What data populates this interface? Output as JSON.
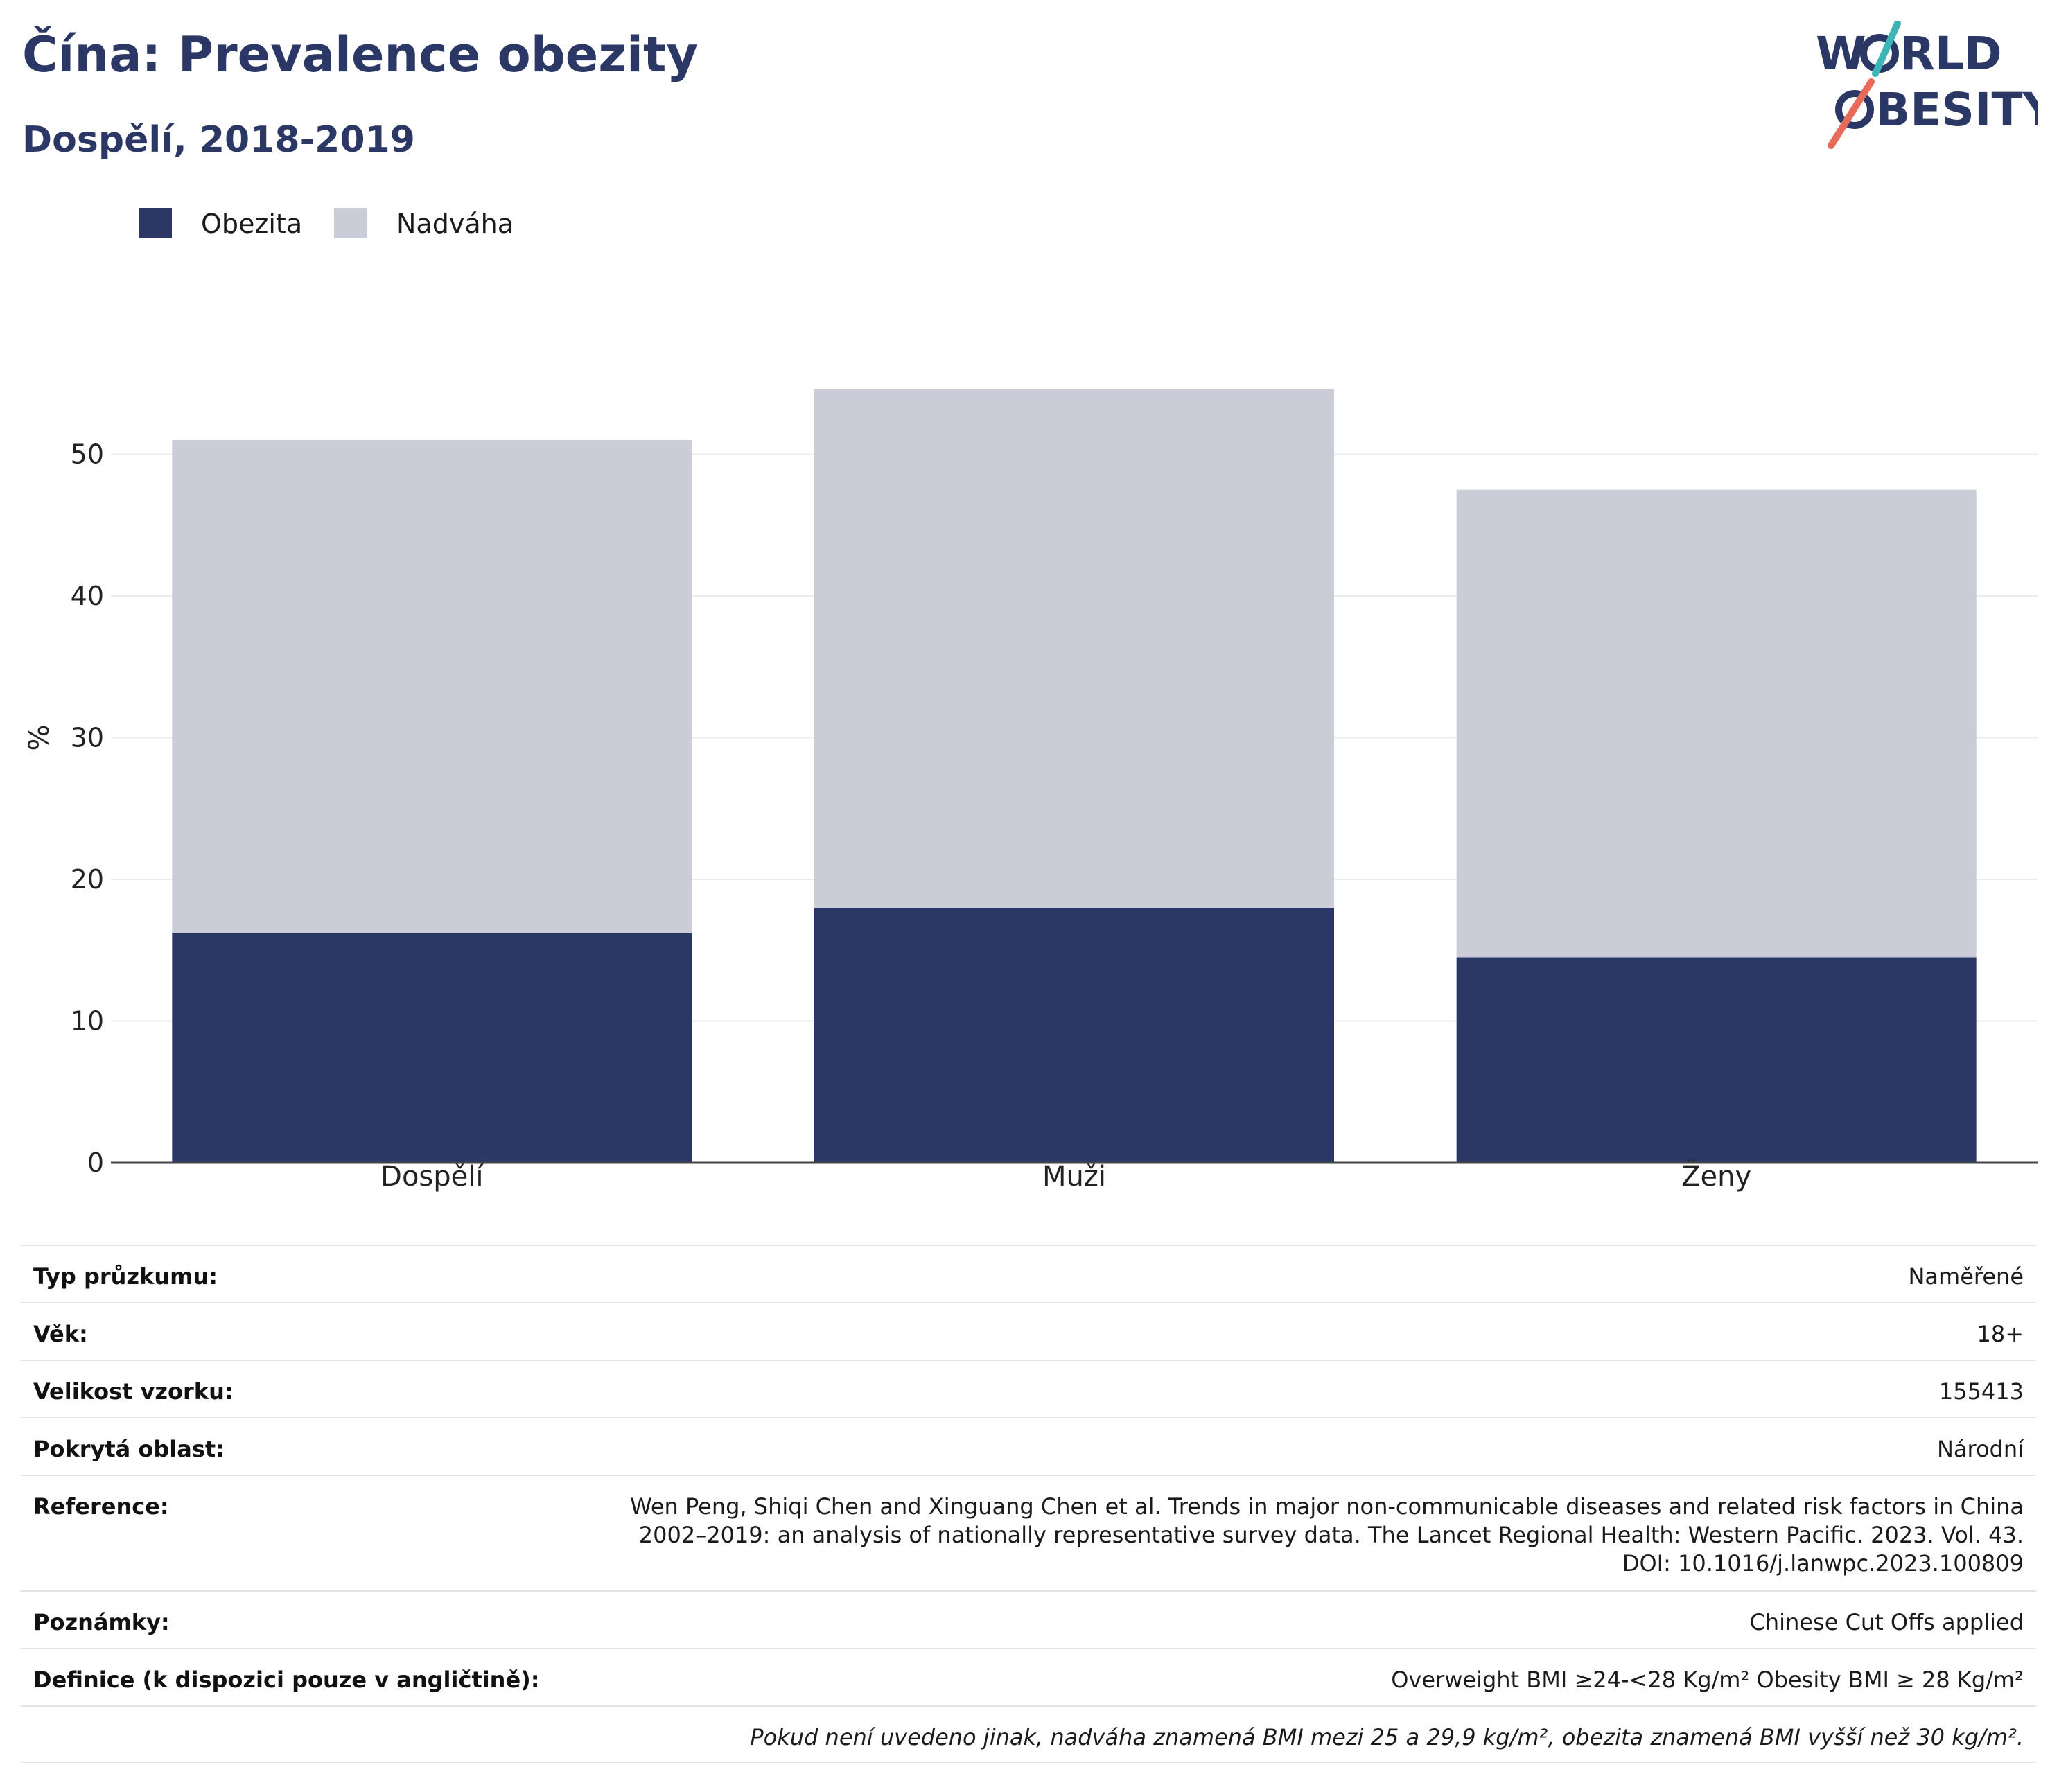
{
  "header": {
    "title": "Čína: Prevalence obezity",
    "subtitle": "Dospělí, 2018-2019"
  },
  "logo": {
    "line1_a": "W",
    "line1_b": "RLD",
    "line2_b": "BESITY",
    "accent_teal": "#3bb5b5",
    "accent_coral": "#e86a58"
  },
  "colors": {
    "obesity": "#2b3764",
    "overweight": "#cacdd8",
    "title": "#2b3764"
  },
  "chart_data": {
    "type": "bar",
    "stacked": true,
    "categories": [
      "Dospělí",
      "Muži",
      "Ženy"
    ],
    "series": [
      {
        "name": "Obezita",
        "values": [
          16.2,
          18.0,
          14.5
        ],
        "color": "#2b3764"
      },
      {
        "name": "Nadváha",
        "values": [
          34.8,
          36.6,
          33.0
        ],
        "color": "#cacdd8"
      }
    ],
    "ylabel": "%",
    "ylim": [
      0,
      60
    ],
    "yticks": [
      0,
      10,
      20,
      30,
      40,
      50
    ],
    "grid": true,
    "legend_position": "top-left"
  },
  "details": {
    "rows": [
      {
        "label": "Typ průzkumu:",
        "value": "Naměřené"
      },
      {
        "label": "Věk:",
        "value": "18+"
      },
      {
        "label": "Velikost vzorku:",
        "value": "155413"
      },
      {
        "label": "Pokrytá oblast:",
        "value": "Národní"
      },
      {
        "label": "Reference:",
        "value": "Wen Peng, Shiqi Chen and Xinguang Chen et al. Trends in major non-communicable diseases and related risk factors in China 2002–2019: an analysis of nationally representative survey data. The Lancet Regional Health: Western Pacific. 2023. Vol. 43. DOI: 10.1016/j.lanwpc.2023.100809"
      },
      {
        "label": "Poznámky:",
        "value": "Chinese Cut Offs applied"
      },
      {
        "label": "Definice (k dispozici pouze v angličtině):",
        "value": "Overweight BMI ≥24-<28 Kg/m² Obesity BMI ≥ 28 Kg/m²"
      }
    ],
    "footnote": "Pokud není uvedeno jinak, nadváha znamená BMI mezi 25 a 29,9 kg/m², obezita znamená BMI vyšší než 30 kg/m²."
  }
}
